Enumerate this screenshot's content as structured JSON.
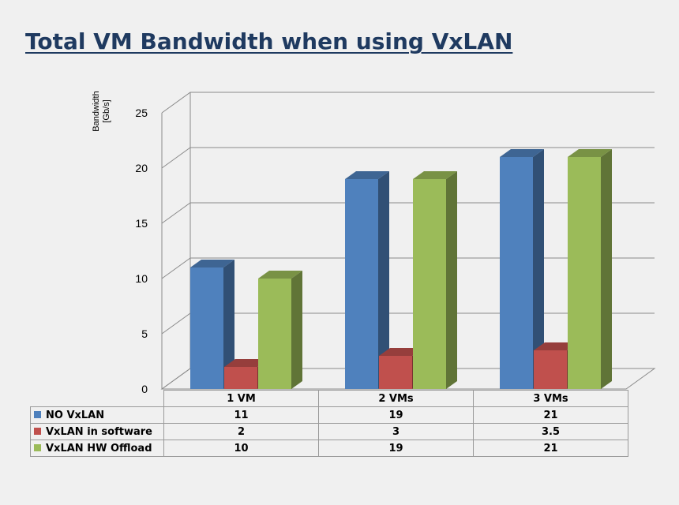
{
  "chart_data": {
    "type": "bar",
    "title": "Total VM Bandwidth when using VxLAN",
    "ylabel_line1": "Bandwidth",
    "ylabel_line2": "[Gb/s]",
    "xlabel": "",
    "categories": [
      "1 VM",
      "2 VMs",
      "3 VMs"
    ],
    "ylim": [
      0,
      25
    ],
    "yticks": [
      "0",
      "5",
      "10",
      "15",
      "20",
      "25"
    ],
    "grid": true,
    "legend": "data-table",
    "series": [
      {
        "name": "NO VxLAN",
        "values": [
          11,
          19,
          21
        ],
        "labels": [
          "11",
          "19",
          "21"
        ],
        "color": "#4f81bd"
      },
      {
        "name": "VxLAN in software",
        "values": [
          2,
          3,
          3.5
        ],
        "labels": [
          "2",
          "3",
          "3.5"
        ],
        "color": "#c0504d"
      },
      {
        "name": "VxLAN HW Offload",
        "values": [
          10,
          19,
          21
        ],
        "labels": [
          "10",
          "19",
          "21"
        ],
        "color": "#9bbb59"
      }
    ]
  }
}
